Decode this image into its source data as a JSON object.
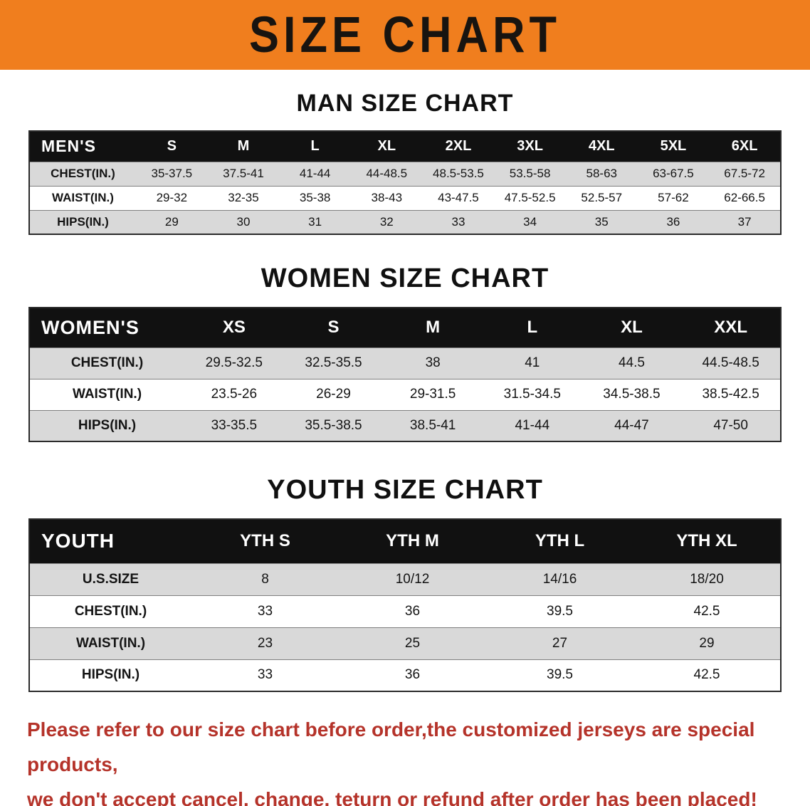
{
  "banner": {
    "title": "SIZE CHART"
  },
  "sections": {
    "men": {
      "heading": "MAN SIZE CHART"
    },
    "women": {
      "heading": "WOMEN SIZE CHART"
    },
    "youth": {
      "heading": "YOUTH SIZE CHART"
    }
  },
  "tables": {
    "men": {
      "header": [
        "MEN'S",
        "S",
        "M",
        "L",
        "XL",
        "2XL",
        "3XL",
        "4XL",
        "5XL",
        "6XL"
      ],
      "rows": [
        {
          "label": "CHEST(IN.)",
          "values": [
            "35-37.5",
            "37.5-41",
            "41-44",
            "44-48.5",
            "48.5-53.5",
            "53.5-58",
            "58-63",
            "63-67.5",
            "67.5-72"
          ]
        },
        {
          "label": "WAIST(IN.)",
          "values": [
            "29-32",
            "32-35",
            "35-38",
            "38-43",
            "43-47.5",
            "47.5-52.5",
            "52.5-57",
            "57-62",
            "62-66.5"
          ]
        },
        {
          "label": "HIPS(IN.)",
          "values": [
            "29",
            "30",
            "31",
            "32",
            "33",
            "34",
            "35",
            "36",
            "37"
          ]
        }
      ]
    },
    "women": {
      "header": [
        "WOMEN'S",
        "XS",
        "S",
        "M",
        "L",
        "XL",
        "XXL"
      ],
      "rows": [
        {
          "label": "CHEST(IN.)",
          "values": [
            "29.5-32.5",
            "32.5-35.5",
            "38",
            "41",
            "44.5",
            "44.5-48.5"
          ]
        },
        {
          "label": "WAIST(IN.)",
          "values": [
            "23.5-26",
            "26-29",
            "29-31.5",
            "31.5-34.5",
            "34.5-38.5",
            "38.5-42.5"
          ]
        },
        {
          "label": "HIPS(IN.)",
          "values": [
            "33-35.5",
            "35.5-38.5",
            "38.5-41",
            "41-44",
            "44-47",
            "47-50"
          ]
        }
      ]
    },
    "youth": {
      "header": [
        "YOUTH",
        "YTH S",
        "YTH M",
        "YTH L",
        "YTH XL"
      ],
      "rows": [
        {
          "label": "U.S.SIZE",
          "values": [
            "8",
            "10/12",
            "14/16",
            "18/20"
          ]
        },
        {
          "label": "CHEST(IN.)",
          "values": [
            "33",
            "36",
            "39.5",
            "42.5"
          ]
        },
        {
          "label": "WAIST(IN.)",
          "values": [
            "23",
            "25",
            "27",
            "29"
          ]
        },
        {
          "label": "HIPS(IN.)",
          "values": [
            "33",
            "36",
            "39.5",
            "42.5"
          ]
        }
      ]
    }
  },
  "disclaimer": {
    "line1": "Please refer to our size chart before order,the customized jerseys are special products,",
    "line2": "we don't accept cancel, change, teturn or refund after order has been placed!"
  },
  "colors": {
    "banner_bg": "#f07e1e",
    "header_bg": "#111111",
    "row_alt_bg": "#d9d9d9",
    "disclaimer_text": "#b5332a"
  }
}
